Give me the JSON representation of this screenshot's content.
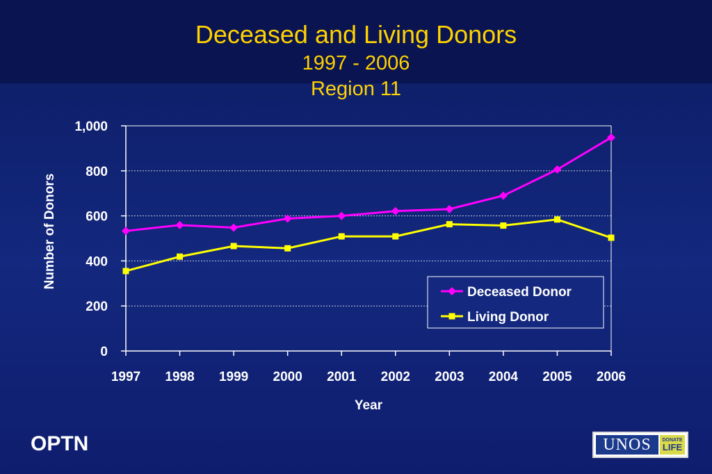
{
  "title": {
    "line1": "Deceased and Living Donors",
    "line2": "1997 - 2006",
    "line3": "Region 11"
  },
  "colors": {
    "title": "#ffd200",
    "deceased": "#ff00ff",
    "living": "#ffff00",
    "background": "#13287e"
  },
  "chart_data": {
    "type": "line",
    "xlabel": "Year",
    "ylabel": "Number of Donors",
    "x": [
      "1997",
      "1998",
      "1999",
      "2000",
      "2001",
      "2002",
      "2003",
      "2004",
      "2005",
      "2006"
    ],
    "ylim": [
      0,
      1000
    ],
    "yticks": [
      "0",
      "200",
      "400",
      "600",
      "800",
      "1,000"
    ],
    "grid": true,
    "legend_position": "bottom-right",
    "series": [
      {
        "name": "Deceased Donor",
        "color": "#ff00ff",
        "marker": "diamond",
        "values": [
          533,
          559,
          548,
          588,
          600,
          621,
          630,
          690,
          806,
          948
        ]
      },
      {
        "name": "Living Donor",
        "color": "#ffff00",
        "marker": "square",
        "values": [
          355,
          419,
          466,
          456,
          509,
          509,
          563,
          557,
          584,
          503
        ]
      }
    ]
  },
  "footer": {
    "left_text": "OPTN",
    "logo_text": "UNOS",
    "logo_badge_top": "DONATE",
    "logo_badge_bottom": "LIFE"
  }
}
